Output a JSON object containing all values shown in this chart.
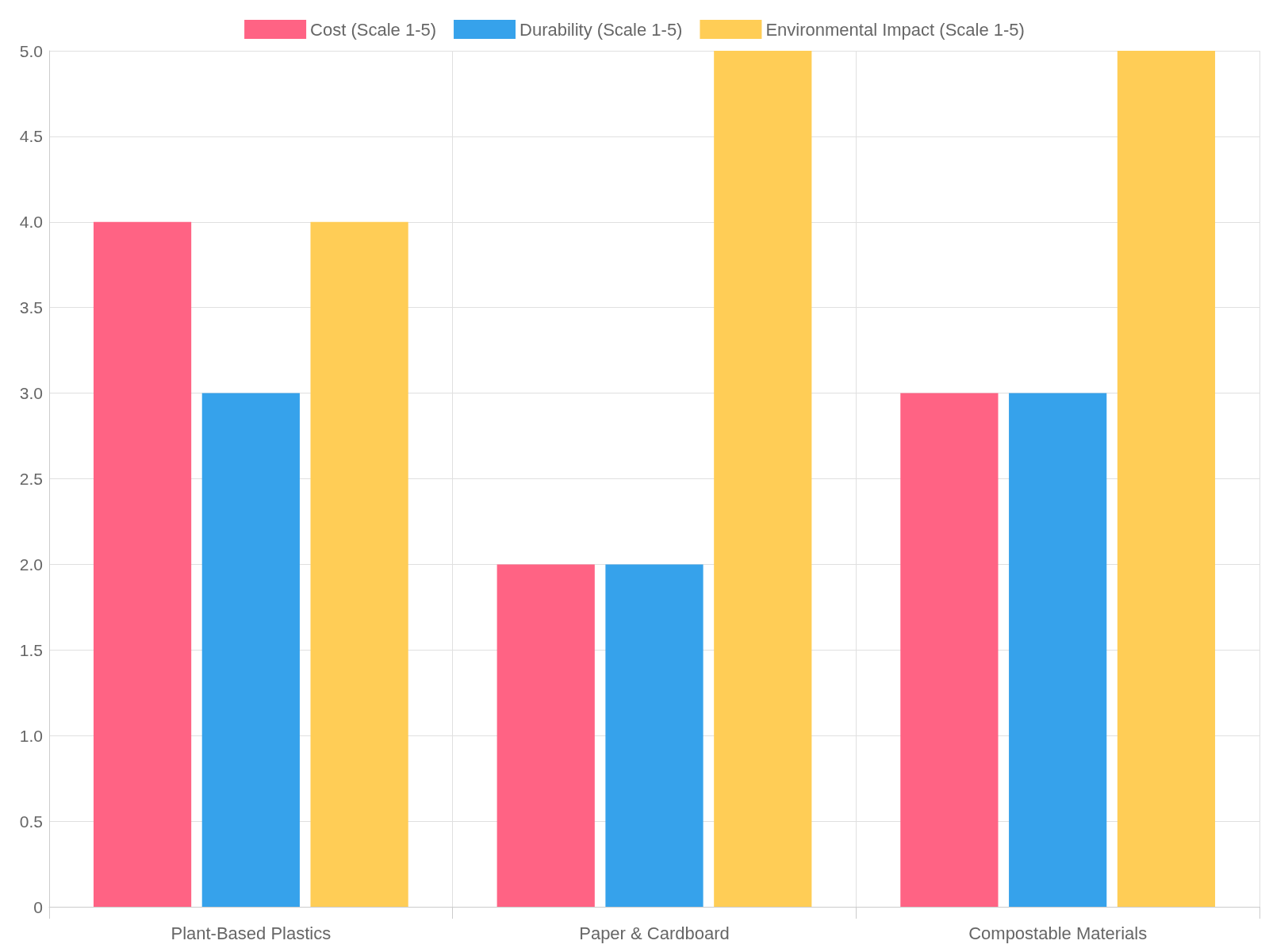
{
  "chart_data": {
    "type": "bar",
    "categories": [
      "Plant-Based Plastics",
      "Paper & Cardboard",
      "Compostable Materials"
    ],
    "series": [
      {
        "name": "Cost (Scale 1-5)",
        "color": "#ff6384",
        "values": [
          4,
          2,
          3
        ]
      },
      {
        "name": "Durability (Scale 1-5)",
        "color": "#36a2eb",
        "values": [
          3,
          2,
          3
        ]
      },
      {
        "name": "Environmental Impact (Scale 1-5)",
        "color": "#ffcd56",
        "values": [
          4,
          5,
          5
        ]
      }
    ],
    "ylim": [
      0,
      5
    ],
    "yticks": [
      0,
      0.5,
      {
        "value": 1,
        "label": "1.0"
      },
      1.5,
      {
        "value": 2,
        "label": "2.0"
      },
      2.5,
      {
        "value": 3,
        "label": "3.0"
      },
      3.5,
      {
        "value": 4,
        "label": "4.0"
      },
      4.5,
      {
        "value": 5,
        "label": "5.0"
      }
    ],
    "grid": true,
    "legend": "top"
  }
}
